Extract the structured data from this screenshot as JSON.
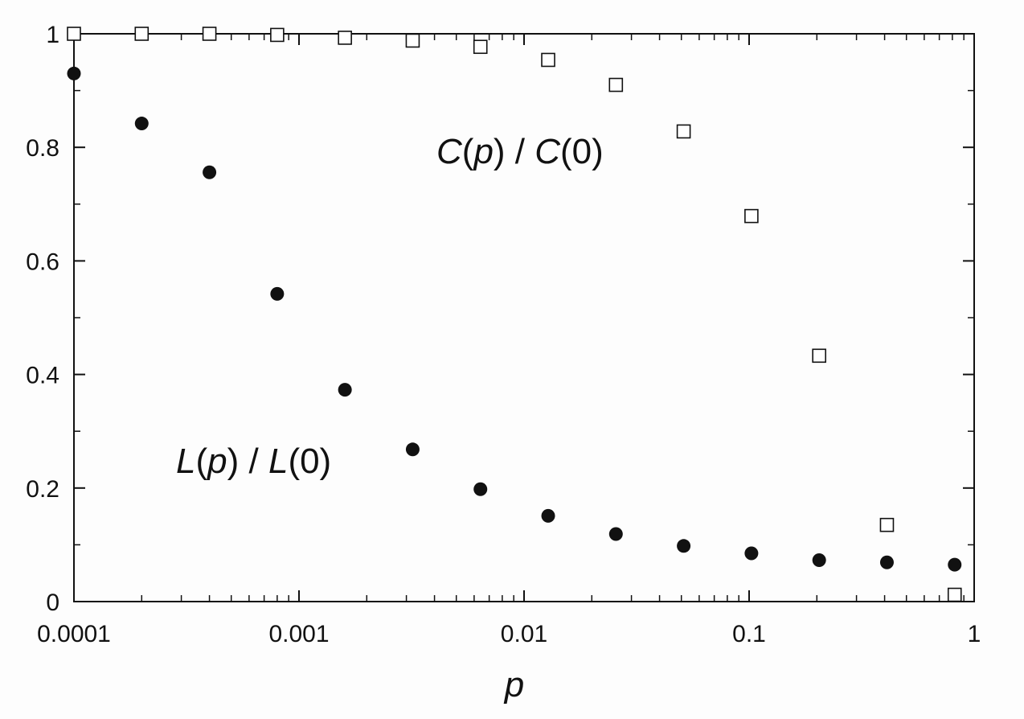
{
  "chart_data": {
    "type": "scatter",
    "xscale": "log",
    "xlim": [
      0.0001,
      1
    ],
    "ylim": [
      0,
      1
    ],
    "xlabel": "p",
    "ylabel": "",
    "title": "",
    "grid": false,
    "x_ticks": [
      "0.0001",
      "0.001",
      "0.01",
      "0.1",
      "1"
    ],
    "y_ticks": [
      "0",
      "0.2",
      "0.4",
      "0.6",
      "0.8",
      "1"
    ],
    "series": [
      {
        "name": "C(p) / C(0)",
        "marker": "open-square",
        "x": [
          0.0001,
          0.0002,
          0.0004,
          0.0008,
          0.0016,
          0.0032,
          0.0064,
          0.0128,
          0.0256,
          0.0512,
          0.1024,
          0.2048,
          0.4096,
          0.8192
        ],
        "y": [
          1.0,
          1.0,
          1.0,
          0.998,
          0.993,
          0.988,
          0.977,
          0.954,
          0.91,
          0.828,
          0.679,
          0.433,
          0.135,
          0.012
        ]
      },
      {
        "name": "L(p) / L(0)",
        "marker": "filled-circle",
        "x": [
          0.0001,
          0.0002,
          0.0004,
          0.0008,
          0.0016,
          0.0032,
          0.0064,
          0.0128,
          0.0256,
          0.0512,
          0.1024,
          0.2048,
          0.4096,
          0.8192
        ],
        "y": [
          0.93,
          0.842,
          0.756,
          0.542,
          0.373,
          0.268,
          0.198,
          0.151,
          0.119,
          0.098,
          0.085,
          0.073,
          0.069,
          0.065
        ]
      }
    ],
    "annotations": [
      {
        "series": 0,
        "fn": "C",
        "open": "(",
        "arg": "p",
        "mid": ") / ",
        "fn2": "C",
        "rest": "(0)"
      },
      {
        "series": 1,
        "fn": "L",
        "open": "(",
        "arg": "p",
        "mid": ") / ",
        "fn2": "L",
        "rest": "(0)"
      }
    ],
    "colors": {
      "axis": "#111111",
      "marker": "#111111",
      "fill": "#ffffff"
    }
  }
}
